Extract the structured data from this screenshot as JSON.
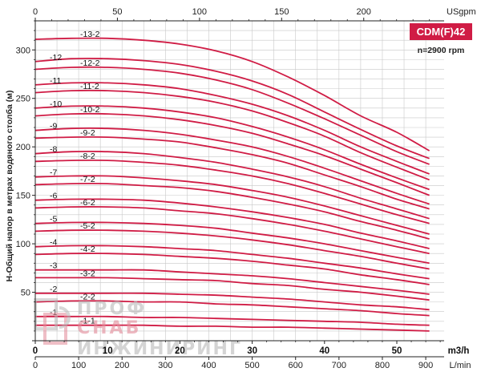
{
  "chart_data": {
    "type": "line",
    "title": "CDM(F)42",
    "subtitle": "n=2900 rpm",
    "ylabel": "H-Общий напор в метрах водяного столба (м)",
    "x_unit_top": "USgpm",
    "x_unit_mid": "m3/h",
    "x_unit_bottom": "L/min",
    "ylim": [
      0,
      330
    ],
    "y_ticks": [
      0,
      50,
      100,
      150,
      200,
      250,
      300
    ],
    "x_ticks_top": [
      0,
      50,
      100,
      150,
      200
    ],
    "x_ticks_mid": [
      0,
      10,
      20,
      30,
      40,
      50
    ],
    "x_ticks_bottom": [
      0,
      100,
      200,
      300,
      400,
      500,
      600,
      700,
      800,
      900
    ],
    "xlim_m3h": [
      0,
      56.5
    ],
    "grid": true,
    "curve_color": "#d01c45",
    "x_m3h": [
      0,
      5,
      10,
      15,
      20,
      25,
      30,
      35,
      40,
      45,
      50,
      54.5
    ],
    "series": [
      {
        "name": "-13-2",
        "values": [
          311,
          312,
          312,
          310,
          306,
          299,
          288,
          272,
          253,
          232,
          215,
          196
        ]
      },
      {
        "name": "-12",
        "values": [
          288,
          291,
          291,
          289,
          285,
          278,
          268,
          254,
          236,
          218,
          201,
          188
        ]
      },
      {
        "name": "-12-2",
        "values": [
          280,
          282,
          282,
          280,
          276,
          269,
          259,
          245,
          229,
          212,
          195,
          182
        ]
      },
      {
        "name": "-11",
        "values": [
          264,
          266,
          266,
          264,
          260,
          253,
          244,
          232,
          217,
          200,
          185,
          172
        ]
      },
      {
        "name": "-11-2",
        "values": [
          256,
          258,
          258,
          256,
          252,
          246,
          237,
          225,
          211,
          194,
          179,
          166
        ]
      },
      {
        "name": "-10",
        "values": [
          240,
          242,
          242,
          240,
          236,
          230,
          221,
          210,
          197,
          182,
          168,
          156
        ]
      },
      {
        "name": "-10-2",
        "values": [
          232,
          234,
          234,
          232,
          228,
          222,
          214,
          203,
          191,
          177,
          163,
          150
        ]
      },
      {
        "name": "-9",
        "values": [
          217,
          219,
          219,
          217,
          213,
          207,
          200,
          190,
          178,
          165,
          152,
          141
        ]
      },
      {
        "name": "-9-2",
        "values": [
          209,
          210,
          210,
          208,
          205,
          199,
          192,
          183,
          171,
          159,
          146,
          136
        ]
      },
      {
        "name": "-8",
        "values": [
          193,
          195,
          195,
          193,
          189,
          184,
          177,
          169,
          159,
          147,
          136,
          126
        ]
      },
      {
        "name": "-8-2",
        "values": [
          185,
          186,
          186,
          184,
          181,
          176,
          170,
          162,
          152,
          141,
          130,
          121
        ]
      },
      {
        "name": "-7",
        "values": [
          169,
          170,
          170,
          168,
          165,
          161,
          155,
          148,
          139,
          129,
          119,
          110
        ]
      },
      {
        "name": "-7-2",
        "values": [
          161,
          162,
          162,
          160,
          158,
          154,
          148,
          141,
          133,
          123,
          114,
          105
        ]
      },
      {
        "name": "-6",
        "values": [
          145,
          146,
          146,
          145,
          142,
          138,
          133,
          127,
          120,
          111,
          103,
          95
        ]
      },
      {
        "name": "-6-2",
        "values": [
          137,
          138,
          138,
          137,
          134,
          131,
          126,
          120,
          113,
          105,
          97,
          90
        ]
      },
      {
        "name": "-5",
        "values": [
          121,
          122,
          122,
          121,
          119,
          116,
          111,
          106,
          100,
          93,
          86,
          80
        ]
      },
      {
        "name": "-5-2",
        "values": [
          113,
          114,
          114,
          113,
          111,
          108,
          104,
          99,
          93,
          87,
          80,
          74
        ]
      },
      {
        "name": "-4",
        "values": [
          97,
          98,
          98,
          97,
          95,
          93,
          89,
          85,
          80,
          75,
          69,
          64
        ]
      },
      {
        "name": "-4-2",
        "values": [
          89,
          90,
          90,
          89,
          87,
          85,
          82,
          78,
          74,
          68,
          63,
          58
        ]
      },
      {
        "name": "-3",
        "values": [
          73,
          73,
          73,
          73,
          71,
          69,
          67,
          64,
          60,
          56,
          52,
          48
        ]
      },
      {
        "name": "-3-2",
        "values": [
          65,
          65,
          65,
          64,
          63,
          62,
          59,
          57,
          53,
          50,
          46,
          42
        ]
      },
      {
        "name": "-2",
        "values": [
          49,
          49,
          49,
          49,
          48,
          47,
          45,
          43,
          40,
          37,
          35,
          32
        ]
      },
      {
        "name": "-2-2",
        "values": [
          40,
          41,
          41,
          40,
          40,
          38,
          37,
          35,
          33,
          31,
          28,
          26
        ]
      },
      {
        "name": "-1",
        "values": [
          25,
          25,
          25,
          24,
          24,
          23,
          22,
          21,
          20,
          19,
          17,
          16
        ]
      },
      {
        "name": "-1-1",
        "values": [
          16,
          16,
          16,
          16,
          15,
          15,
          14,
          14,
          13,
          12,
          11,
          10
        ]
      }
    ]
  },
  "watermark": {
    "line1": "ПРОФ",
    "line2": "СНАБ",
    "line3": "ИНЖИНИРИНГ"
  },
  "colors": {
    "accent": "#d01c45",
    "grid": "#c8c8c8",
    "watermark": "#b8b8b8",
    "watermark_red": "#e38a98"
  }
}
